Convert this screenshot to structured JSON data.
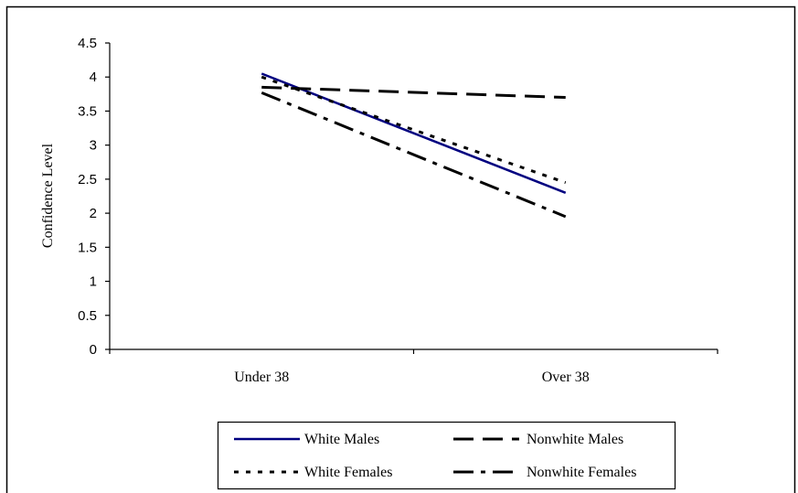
{
  "chart_data": {
    "type": "line",
    "title": "",
    "xlabel": "",
    "ylabel": "Confidence Level",
    "categories": [
      "Under 38",
      "Over 38"
    ],
    "ylim": [
      0,
      4.5
    ],
    "yticks": [
      "0",
      "0.5",
      "1",
      "1.5",
      "2",
      "2.5",
      "3",
      "3.5",
      "4",
      "4.5"
    ],
    "grid": false,
    "legend_position": "bottom",
    "series": [
      {
        "name": "White Males",
        "values": [
          4.05,
          2.3
        ],
        "color": "#000080",
        "style": "solid"
      },
      {
        "name": "Nonwhite Males",
        "values": [
          3.85,
          3.7
        ],
        "color": "#000000",
        "style": "dash"
      },
      {
        "name": "White Females",
        "values": [
          4.0,
          2.45
        ],
        "color": "#000000",
        "style": "dot"
      },
      {
        "name": "Nonwhite Females",
        "values": [
          3.77,
          1.95
        ],
        "color": "#000000",
        "style": "dash-dot"
      }
    ]
  }
}
